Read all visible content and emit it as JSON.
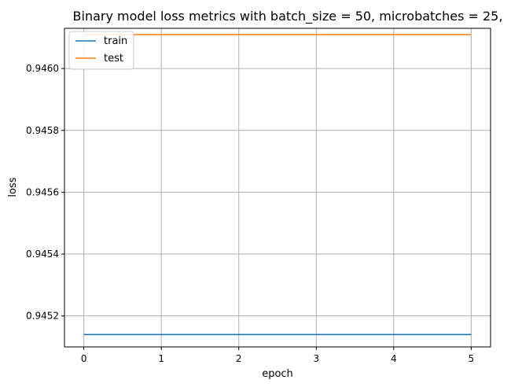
{
  "chart_data": {
    "type": "line",
    "title": "Binary model loss metrics with batch_size = 50, microbatches = 25,",
    "xlabel": "epoch",
    "ylabel": "loss",
    "x": [
      0,
      1,
      2,
      3,
      4,
      5
    ],
    "xticks": [
      0,
      1,
      2,
      3,
      4,
      5
    ],
    "xtick_labels": [
      "0",
      "1",
      "2",
      "3",
      "4",
      "5"
    ],
    "yticks": [
      0.9452,
      0.9454,
      0.9456,
      0.9458,
      0.946
    ],
    "ytick_labels": [
      "0.9452",
      "0.9454",
      "0.9456",
      "0.9458",
      "0.9460"
    ],
    "xlim": [
      -0.25,
      5.25
    ],
    "ylim": [
      0.9451,
      0.94613
    ],
    "grid": true,
    "legend_position": "top-left",
    "series": [
      {
        "name": "train",
        "color": "#1f77b4",
        "values": [
          0.94514,
          0.94514,
          0.94514,
          0.94514,
          0.94514,
          0.94514
        ]
      },
      {
        "name": "test",
        "color": "#ff7f0e",
        "values": [
          0.94611,
          0.94611,
          0.94611,
          0.94611,
          0.94611,
          0.94611
        ]
      }
    ]
  }
}
